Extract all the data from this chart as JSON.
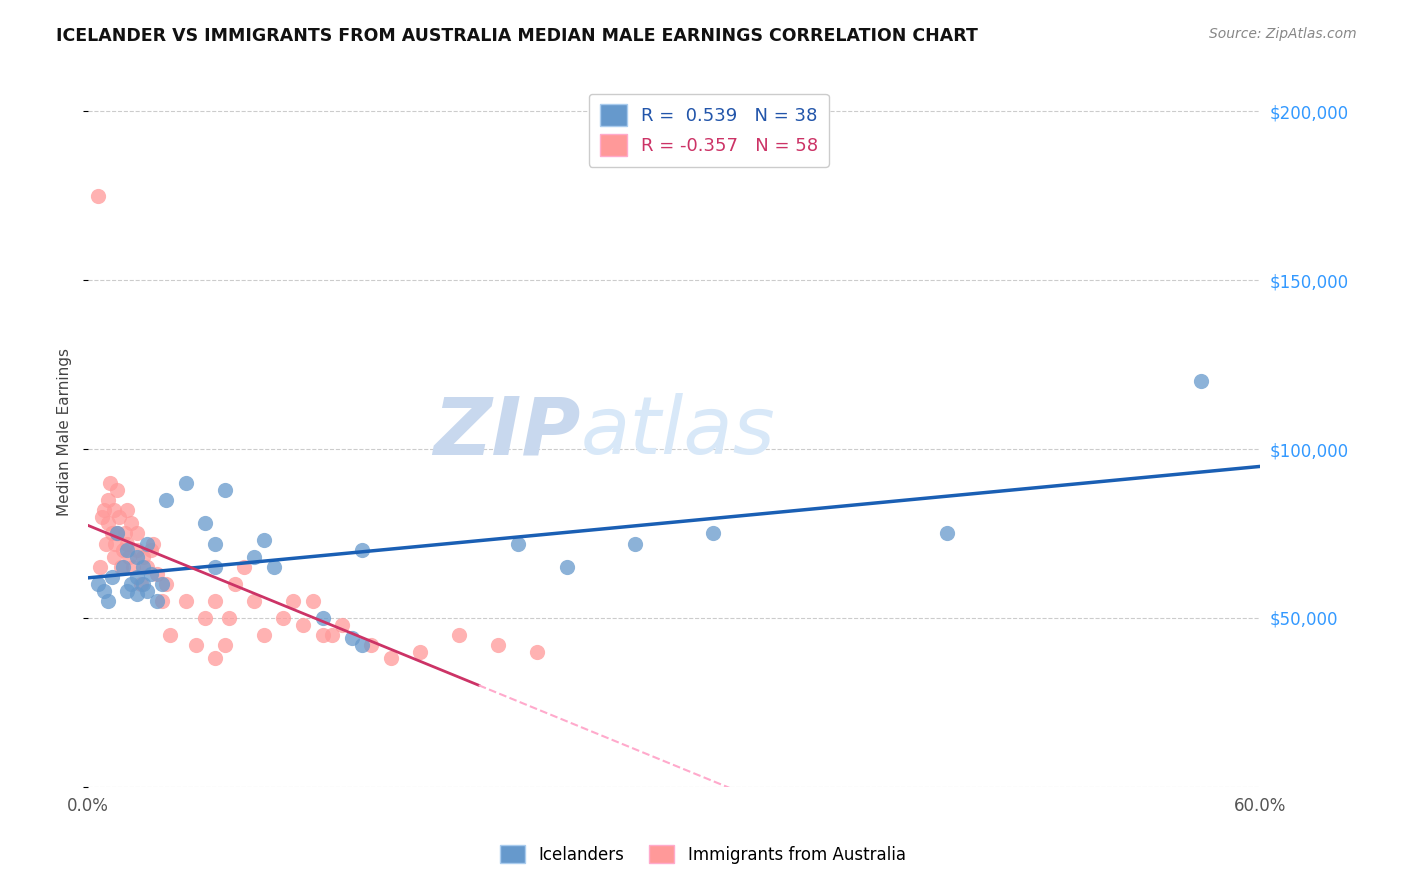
{
  "title": "ICELANDER VS IMMIGRANTS FROM AUSTRALIA MEDIAN MALE EARNINGS CORRELATION CHART",
  "source": "Source: ZipAtlas.com",
  "ylabel": "Median Male Earnings",
  "xlim": [
    0.0,
    0.6
  ],
  "ylim": [
    0,
    210000
  ],
  "yticks": [
    0,
    50000,
    100000,
    150000,
    200000
  ],
  "ytick_labels": [
    "",
    "$50,000",
    "$100,000",
    "$150,000",
    "$200,000"
  ],
  "xticks": [
    0.0,
    0.1,
    0.2,
    0.3,
    0.4,
    0.5,
    0.6
  ],
  "xtick_labels": [
    "0.0%",
    "",
    "",
    "",
    "",
    "",
    "60.0%"
  ],
  "blue_color": "#6699CC",
  "pink_color": "#FF9999",
  "line_blue": "#1A5FB4",
  "line_pink": "#CC3366",
  "line_pink_dash": "#FFAACC",
  "watermark_zip": "ZIP",
  "watermark_atlas": "atlas",
  "icelanders_x": [
    0.005,
    0.008,
    0.01,
    0.012,
    0.015,
    0.018,
    0.02,
    0.02,
    0.022,
    0.025,
    0.025,
    0.025,
    0.028,
    0.028,
    0.03,
    0.03,
    0.032,
    0.035,
    0.038,
    0.04,
    0.05,
    0.06,
    0.065,
    0.065,
    0.07,
    0.085,
    0.09,
    0.095,
    0.12,
    0.135,
    0.14,
    0.14,
    0.22,
    0.245,
    0.28,
    0.32,
    0.44,
    0.57
  ],
  "icelanders_y": [
    60000,
    58000,
    55000,
    62000,
    75000,
    65000,
    70000,
    58000,
    60000,
    57000,
    62000,
    68000,
    65000,
    60000,
    72000,
    58000,
    63000,
    55000,
    60000,
    85000,
    90000,
    78000,
    72000,
    65000,
    88000,
    68000,
    73000,
    65000,
    50000,
    44000,
    42000,
    70000,
    72000,
    65000,
    72000,
    75000,
    75000,
    120000
  ],
  "australia_x": [
    0.005,
    0.006,
    0.007,
    0.008,
    0.009,
    0.01,
    0.01,
    0.011,
    0.012,
    0.013,
    0.013,
    0.014,
    0.015,
    0.015,
    0.016,
    0.017,
    0.018,
    0.019,
    0.02,
    0.02,
    0.021,
    0.022,
    0.023,
    0.025,
    0.025,
    0.027,
    0.028,
    0.03,
    0.032,
    0.033,
    0.035,
    0.038,
    0.04,
    0.042,
    0.05,
    0.055,
    0.06,
    0.065,
    0.065,
    0.07,
    0.072,
    0.075,
    0.08,
    0.085,
    0.09,
    0.1,
    0.105,
    0.11,
    0.115,
    0.12,
    0.125,
    0.13,
    0.145,
    0.155,
    0.17,
    0.19,
    0.21,
    0.23
  ],
  "australia_y": [
    175000,
    65000,
    80000,
    82000,
    72000,
    85000,
    78000,
    90000,
    75000,
    82000,
    68000,
    72000,
    75000,
    88000,
    80000,
    65000,
    70000,
    75000,
    72000,
    82000,
    68000,
    78000,
    65000,
    70000,
    75000,
    60000,
    68000,
    65000,
    70000,
    72000,
    63000,
    55000,
    60000,
    45000,
    55000,
    42000,
    50000,
    38000,
    55000,
    42000,
    50000,
    60000,
    65000,
    55000,
    45000,
    50000,
    55000,
    48000,
    55000,
    45000,
    45000,
    48000,
    42000,
    38000,
    40000,
    45000,
    42000,
    40000
  ]
}
